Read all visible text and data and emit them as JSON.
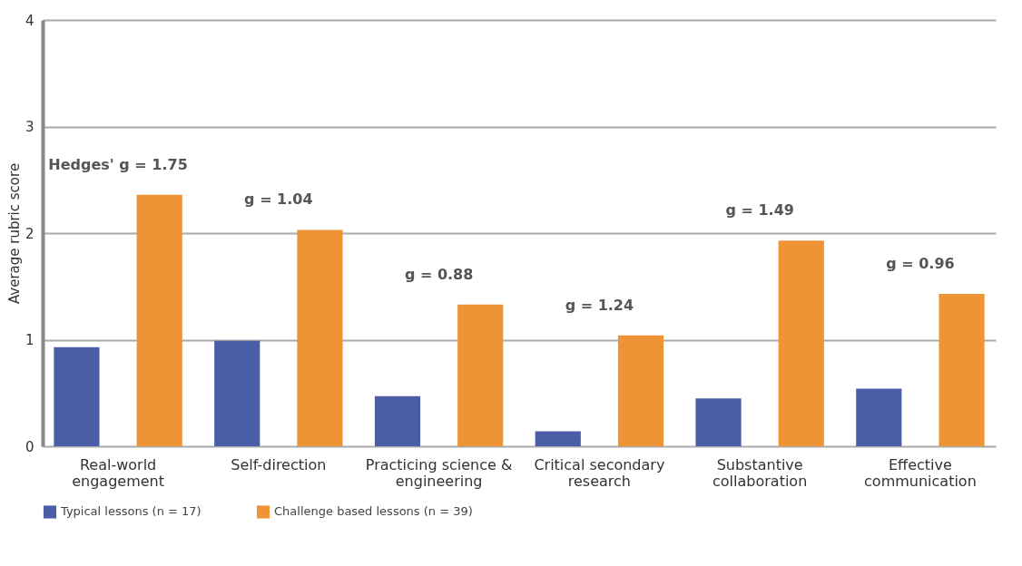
{
  "chart_data": {
    "type": "bar",
    "ylabel": "Average rubric score",
    "categories": [
      "Real-world engagement",
      "Self-direction",
      "Practicing science & engineering",
      "Critical secondary research",
      "Substantive collaboration",
      "Effective communication"
    ],
    "series": [
      {
        "name": "Typical lessons (n = 17)",
        "color": "#4a5ea8",
        "values": [
          0.93,
          0.99,
          0.47,
          0.14,
          0.45,
          0.54
        ]
      },
      {
        "name": "Challenge based lessons (n = 39)",
        "color": "#ee9336",
        "values": [
          2.36,
          2.03,
          1.33,
          1.04,
          1.93,
          1.43
        ]
      }
    ],
    "ylim": [
      0,
      4
    ],
    "yticks": [
      0,
      1,
      2,
      3,
      4
    ],
    "grid": "y",
    "legend": "bottom",
    "annotations": [
      "Hedges' g = 1.75",
      "g = 1.04",
      "g = 0.88",
      "g = 1.24",
      "g = 1.49",
      "g = 0.96"
    ]
  }
}
